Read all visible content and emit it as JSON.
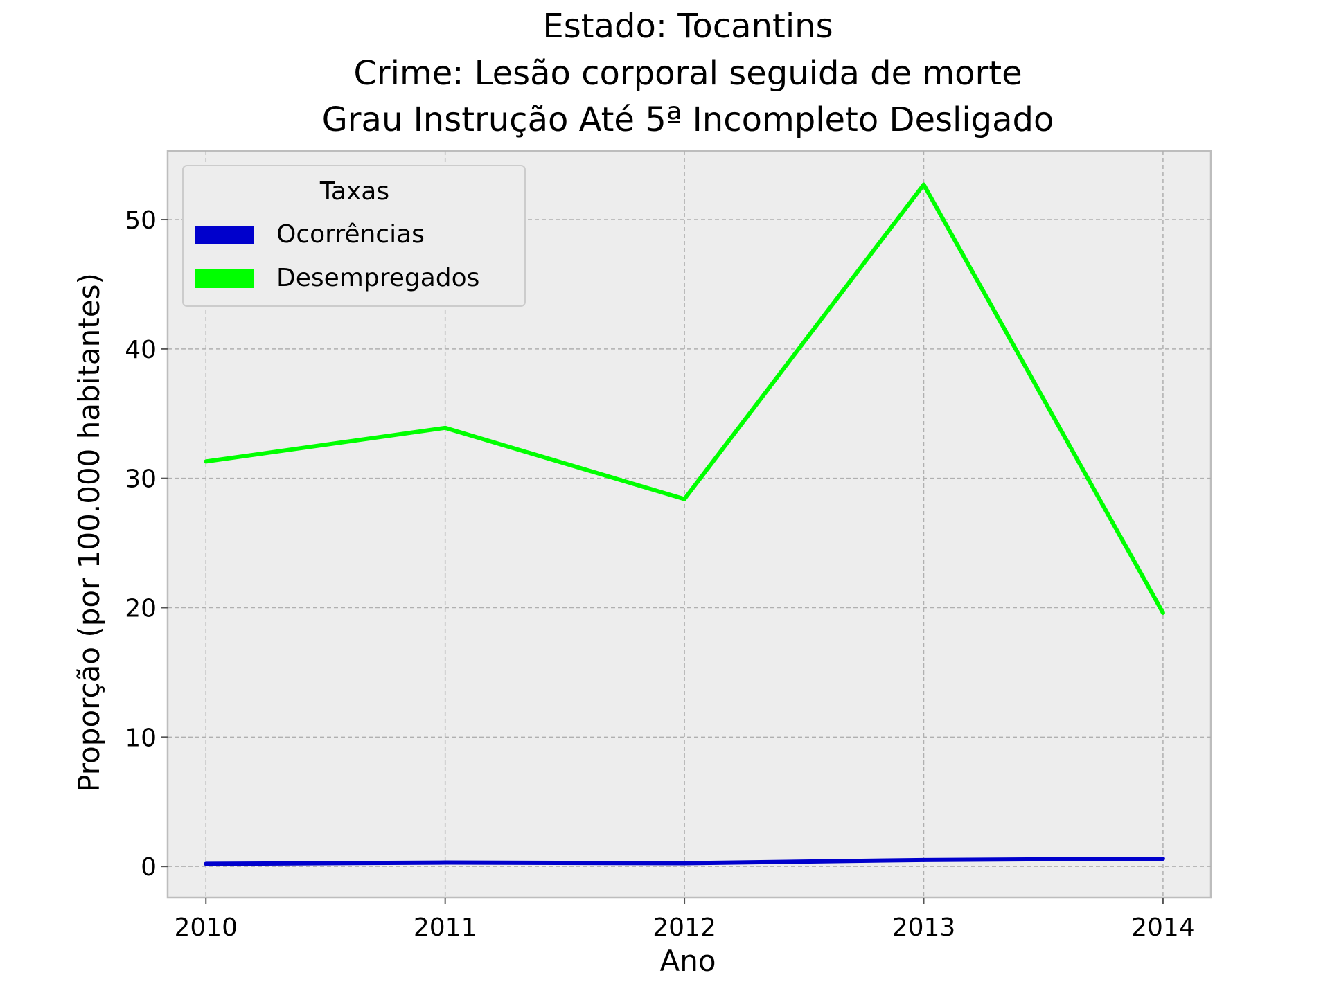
{
  "chart_data": {
    "type": "line",
    "title": [
      "Estado: Tocantins",
      "Crime: Lesão corporal seguida de morte",
      "Grau Instrução  Até 5ª Incompleto   Desligado"
    ],
    "xlabel": "Ano",
    "ylabel": "Proporção (por 100.000 habitantes)",
    "x": [
      2010,
      2011,
      2012,
      2013,
      2014
    ],
    "x_tick_labels": [
      "2010",
      "2011",
      "2012",
      "2013",
      "2014"
    ],
    "xlim": [
      2009.84,
      2014.2
    ],
    "ylim": [
      -2.4,
      55.3
    ],
    "y_ticks": [
      0,
      10,
      20,
      30,
      40,
      50
    ],
    "y_tick_labels": [
      "0",
      "10",
      "20",
      "30",
      "40",
      "50"
    ],
    "grid": true,
    "background": "#ededed",
    "legend": {
      "title": "Taxas",
      "placement": "upper-left"
    },
    "series": [
      {
        "name": "Ocorrências",
        "color": "#0000cc",
        "values": [
          0.2,
          0.3,
          0.25,
          0.5,
          0.6
        ]
      },
      {
        "name": "Desempregados",
        "color": "#00ff00",
        "values": [
          31.3,
          33.9,
          28.4,
          52.7,
          19.6
        ]
      }
    ]
  }
}
